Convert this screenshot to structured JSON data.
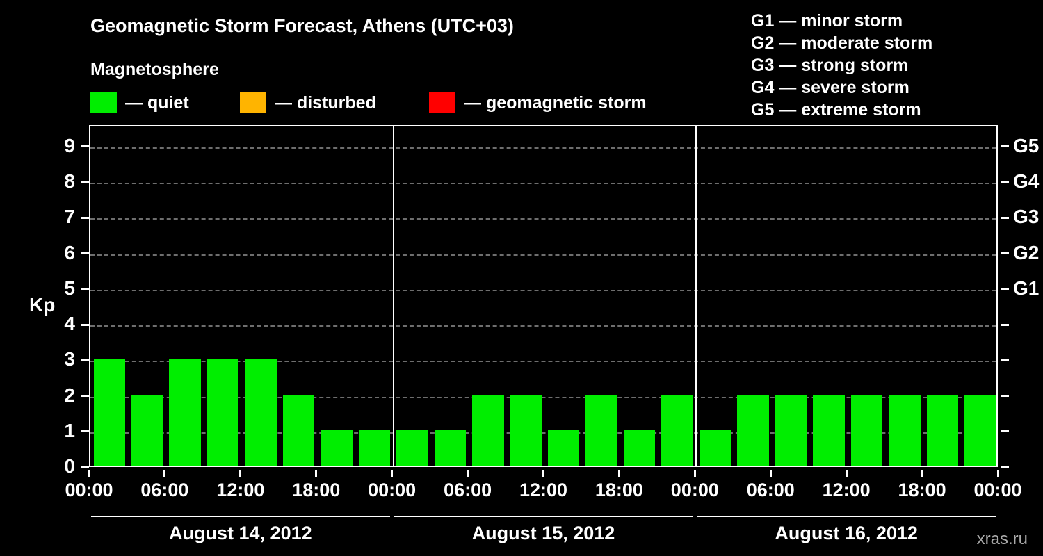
{
  "title": "Geomagnetic Storm Forecast, Athens (UTC+03)",
  "legend": {
    "heading": "Magnetosphere",
    "items": [
      {
        "label": "— quiet",
        "color": "#00ee00"
      },
      {
        "label": "— disturbed",
        "color": "#ffb400"
      },
      {
        "label": "— geomagnetic storm",
        "color": "#ff0000"
      }
    ]
  },
  "g_legend": [
    "G1 — minor storm",
    "G2 — moderate storm",
    "G3 — strong storm",
    "G4 — severe storm",
    "G5 — extreme storm"
  ],
  "chart_data": {
    "type": "bar",
    "ylabel": "Kp",
    "ylim": [
      0,
      9.6
    ],
    "yticks": [
      0,
      1,
      2,
      3,
      4,
      5,
      6,
      7,
      8,
      9
    ],
    "grid": "dashed horizontal at each Kp level",
    "bar_color": "#00ee00",
    "right_axis_labels": [
      {
        "label": "G5",
        "kp": 9
      },
      {
        "label": "G4",
        "kp": 8
      },
      {
        "label": "G3",
        "kp": 7
      },
      {
        "label": "G2",
        "kp": 6
      },
      {
        "label": "G1",
        "kp": 5
      }
    ],
    "x_tick_labels": [
      "00:00",
      "06:00",
      "12:00",
      "18:00",
      "00:00",
      "06:00",
      "12:00",
      "18:00",
      "00:00",
      "06:00",
      "12:00",
      "18:00",
      "00:00"
    ],
    "days": [
      {
        "date": "August 14, 2012",
        "values": [
          3,
          2,
          3,
          3,
          3,
          2,
          1,
          1
        ]
      },
      {
        "date": "August 15, 2012",
        "values": [
          1,
          1,
          2,
          2,
          1,
          2,
          1,
          2
        ]
      },
      {
        "date": "August 16, 2012",
        "values": [
          1,
          2,
          2,
          2,
          2,
          2,
          2,
          2
        ]
      }
    ]
  },
  "watermark": "xras.ru"
}
